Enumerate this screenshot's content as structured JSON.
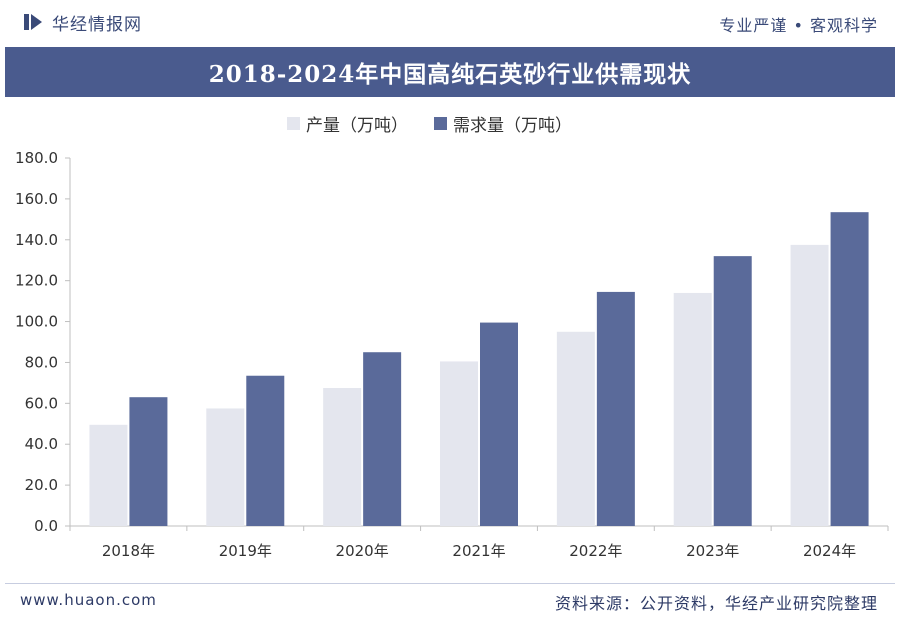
{
  "header": {
    "brand_name": "华经情报网",
    "slogan": "专业严谨 • 客观科学"
  },
  "chart_data": {
    "type": "bar",
    "title": "2018-2024年中国高纯石英砂行业供需现状",
    "categories": [
      "2018年",
      "2019年",
      "2020年",
      "2021年",
      "2022年",
      "2023年",
      "2024年"
    ],
    "series": [
      {
        "name": "产量（万吨）",
        "values": [
          49.5,
          57.5,
          67.5,
          80.5,
          95.0,
          114.0,
          137.5
        ],
        "color": "#e4e6ee"
      },
      {
        "name": "需求量（万吨）",
        "values": [
          63.0,
          73.5,
          85.0,
          99.5,
          114.5,
          132.0,
          153.5
        ],
        "color": "#5a6a9a"
      }
    ],
    "ylim": [
      0,
      180
    ],
    "yticks": [
      "0.0",
      "20.0",
      "40.0",
      "60.0",
      "80.0",
      "100.0",
      "120.0",
      "140.0",
      "160.0",
      "180.0"
    ],
    "xlabel": "",
    "ylabel": "",
    "grid": false,
    "legend": "top"
  },
  "footer": {
    "website": "www.huaon.com",
    "source": "资料来源：公开资料，华经产业研究院整理"
  }
}
